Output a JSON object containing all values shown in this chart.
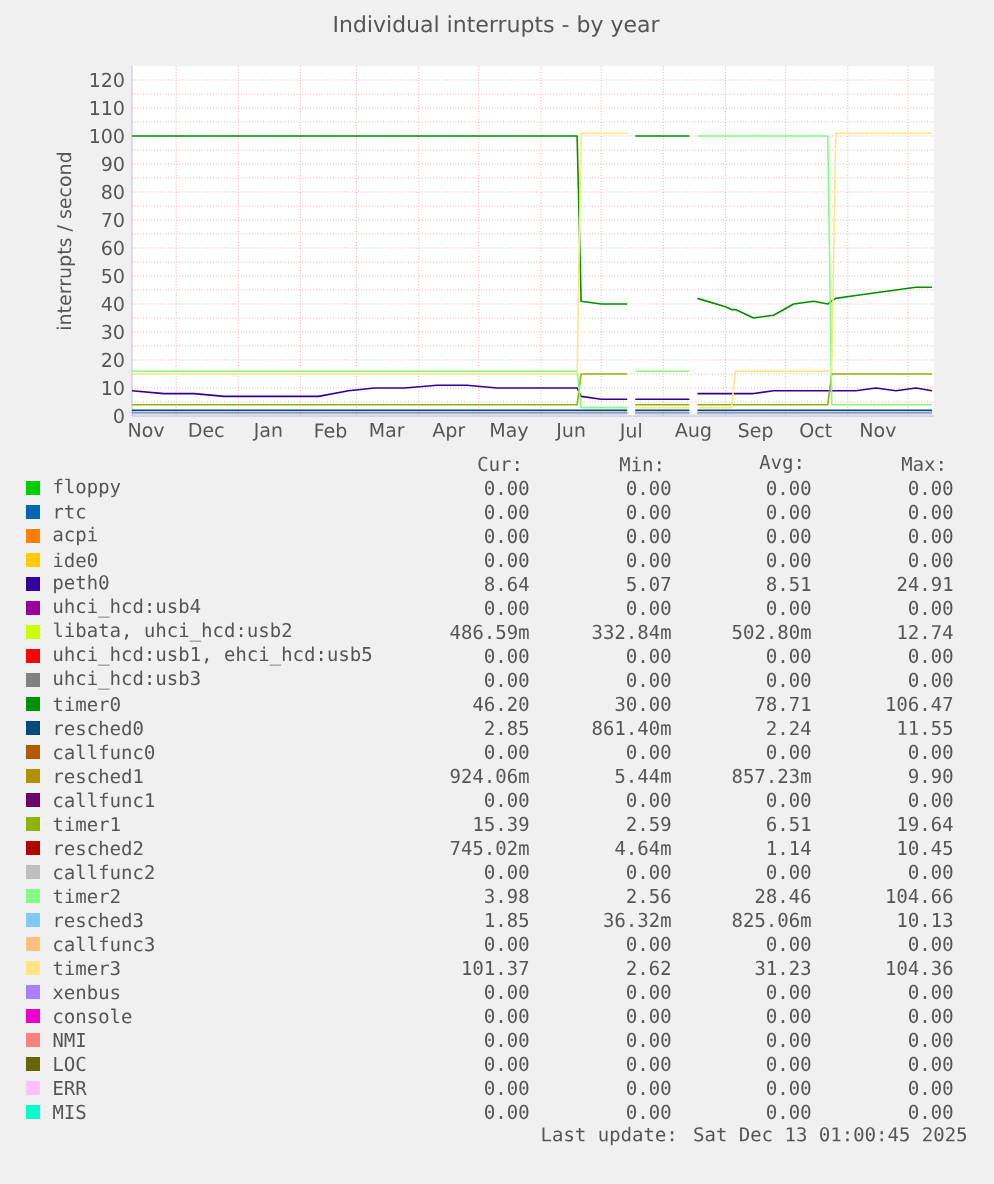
{
  "chart_data": {
    "type": "line",
    "title": "Individual interrupts - by year",
    "ylabel": "interrupts / second",
    "x": [
      "2024-11-09",
      "2024-11-25",
      "2024-12-10",
      "2024-12-25",
      "2025-01-10",
      "2025-01-25",
      "2025-02-10",
      "2025-02-25",
      "2025-03-10",
      "2025-03-25",
      "2025-04-10",
      "2025-04-25",
      "2025-05-10",
      "2025-05-25",
      "2025-06-10",
      "2025-06-19",
      "2025-06-21",
      "2025-07-01",
      "2025-07-14",
      "2025-07-16",
      "2025-07-18",
      "2025-08-01",
      "2025-08-14",
      "2025-08-16",
      "2025-08-18",
      "2025-09-01",
      "2025-09-04",
      "2025-09-06",
      "2025-09-15",
      "2025-09-25",
      "2025-10-05",
      "2025-10-15",
      "2025-10-22",
      "2025-10-24",
      "2025-10-26",
      "2025-11-05",
      "2025-11-15",
      "2025-11-25",
      "2025-12-05",
      "2025-12-13"
    ],
    "xlim": [
      "2024-11-09",
      "2025-12-14"
    ],
    "xticks": [
      {
        "value": "2024-12-01",
        "label": null
      },
      {
        "value": "2025-01-01",
        "label": null
      },
      {
        "value": "2025-02-01",
        "label": null
      },
      {
        "value": "2025-03-01",
        "label": null
      },
      {
        "value": "2025-04-01",
        "label": null
      },
      {
        "value": "2025-05-01",
        "label": null
      },
      {
        "value": "2025-06-01",
        "label": null
      },
      {
        "value": "2025-07-01",
        "label": null
      },
      {
        "value": "2025-08-01",
        "label": null
      },
      {
        "value": "2025-09-01",
        "label": null
      },
      {
        "value": "2025-10-01",
        "label": null
      },
      {
        "value": "2025-11-01",
        "label": null
      },
      {
        "value": "2025-12-01",
        "label": null
      },
      {
        "value": "2024-11-16",
        "label": "Nov"
      },
      {
        "value": "2024-12-16",
        "label": "Dec"
      },
      {
        "value": "2025-01-16",
        "label": "Jan"
      },
      {
        "value": "2025-02-16",
        "label": "Feb"
      },
      {
        "value": "2025-03-16",
        "label": "Mar"
      },
      {
        "value": "2025-04-16",
        "label": "Apr"
      },
      {
        "value": "2025-05-16",
        "label": "May"
      },
      {
        "value": "2025-06-16",
        "label": "Jun"
      },
      {
        "value": "2025-07-16",
        "label": "Jul"
      },
      {
        "value": "2025-08-16",
        "label": "Aug"
      },
      {
        "value": "2025-09-16",
        "label": "Sep"
      },
      {
        "value": "2025-10-16",
        "label": "Oct"
      },
      {
        "value": "2025-11-16",
        "label": "Nov"
      }
    ],
    "ylim": [
      0,
      125
    ],
    "yticks": [
      0,
      {
        "value": 5,
        "label": null
      },
      10,
      {
        "value": 15,
        "label": null
      },
      20,
      {
        "value": 25,
        "label": null
      },
      30,
      {
        "value": 35,
        "label": null
      },
      40,
      {
        "value": 45,
        "label": null
      },
      50,
      {
        "value": 55,
        "label": null
      },
      60,
      {
        "value": 65,
        "label": null
      },
      70,
      {
        "value": 75,
        "label": null
      },
      80,
      {
        "value": 85,
        "label": null
      },
      90,
      {
        "value": 95,
        "label": null
      },
      100,
      {
        "value": 105,
        "label": null
      },
      110,
      {
        "value": 115,
        "label": null
      },
      120
    ],
    "grid": true,
    "legend": "bottom",
    "series": [
      {
        "name": "floppy",
        "color": "#00cc00",
        "values": [
          null,
          null,
          null,
          null,
          null,
          null,
          null,
          null,
          null,
          null,
          null,
          null,
          null,
          null,
          null,
          null,
          null,
          null,
          null,
          null,
          null,
          null,
          null,
          null,
          null,
          null,
          null,
          null,
          null,
          null,
          null,
          null,
          null,
          null,
          null,
          null,
          null,
          null,
          null,
          null
        ]
      },
      {
        "name": "rtc",
        "color": "#0066b3",
        "values": [
          null,
          null,
          null,
          null,
          null,
          null,
          null,
          null,
          null,
          null,
          null,
          null,
          null,
          null,
          null,
          null,
          null,
          null,
          null,
          null,
          null,
          null,
          null,
          null,
          null,
          null,
          null,
          null,
          null,
          null,
          null,
          null,
          null,
          null,
          null,
          null,
          null,
          null,
          null,
          null
        ]
      },
      {
        "name": "acpi",
        "color": "#ff8000",
        "values": [
          null,
          null,
          null,
          null,
          null,
          null,
          null,
          null,
          null,
          null,
          null,
          null,
          null,
          null,
          null,
          null,
          null,
          null,
          null,
          null,
          null,
          null,
          null,
          null,
          null,
          null,
          null,
          null,
          null,
          null,
          null,
          null,
          null,
          null,
          null,
          null,
          null,
          null,
          null,
          null
        ]
      },
      {
        "name": "ide0",
        "color": "#ffcc00",
        "values": [
          null,
          null,
          null,
          null,
          null,
          null,
          null,
          null,
          null,
          null,
          null,
          null,
          null,
          null,
          null,
          null,
          null,
          null,
          null,
          null,
          null,
          null,
          null,
          null,
          null,
          null,
          null,
          null,
          null,
          null,
          null,
          null,
          null,
          null,
          null,
          null,
          null,
          null,
          null,
          null
        ]
      },
      {
        "name": "peth0",
        "color": "#330099",
        "values": [
          9,
          8,
          8,
          7,
          7,
          7,
          7,
          9,
          10,
          10,
          11,
          11,
          10,
          10,
          10,
          10,
          7,
          6,
          6,
          null,
          6,
          6,
          6,
          null,
          8,
          8,
          8,
          8,
          8,
          9,
          9,
          9,
          9,
          9,
          9,
          9,
          10,
          9,
          10,
          9
        ]
      },
      {
        "name": "uhci_hcd:usb4",
        "color": "#990099",
        "values": [
          null,
          null,
          null,
          null,
          null,
          null,
          null,
          null,
          null,
          null,
          null,
          null,
          null,
          null,
          null,
          null,
          null,
          null,
          null,
          null,
          null,
          null,
          null,
          null,
          null,
          null,
          null,
          null,
          null,
          null,
          null,
          null,
          null,
          null,
          null,
          null,
          null,
          null,
          null,
          null
        ]
      },
      {
        "name": "libata, uhci_hcd:usb2",
        "color": "#ccff00",
        "values": [
          null,
          null,
          null,
          null,
          null,
          null,
          null,
          null,
          null,
          null,
          null,
          null,
          null,
          null,
          null,
          null,
          null,
          null,
          null,
          null,
          null,
          null,
          null,
          null,
          null,
          null,
          null,
          null,
          null,
          null,
          null,
          null,
          null,
          null,
          null,
          null,
          null,
          null,
          null,
          null
        ]
      },
      {
        "name": "uhci_hcd:usb1, ehci_hcd:usb5",
        "color": "#ff0000",
        "values": [
          null,
          null,
          null,
          null,
          null,
          null,
          null,
          null,
          null,
          null,
          null,
          null,
          null,
          null,
          null,
          null,
          null,
          null,
          null,
          null,
          null,
          null,
          null,
          null,
          null,
          null,
          null,
          null,
          null,
          null,
          null,
          null,
          null,
          null,
          null,
          null,
          null,
          null,
          null,
          null
        ]
      },
      {
        "name": "uhci_hcd:usb3",
        "color": "#808080",
        "values": [
          null,
          null,
          null,
          null,
          null,
          null,
          null,
          null,
          null,
          null,
          null,
          null,
          null,
          null,
          null,
          null,
          null,
          null,
          null,
          null,
          null,
          null,
          null,
          null,
          null,
          null,
          null,
          null,
          null,
          null,
          null,
          null,
          null,
          null,
          null,
          null,
          null,
          null,
          null,
          null
        ]
      },
      {
        "name": "timer0",
        "color": "#008f00",
        "values": [
          100,
          100,
          100,
          100,
          100,
          100,
          100,
          100,
          100,
          100,
          100,
          100,
          100,
          100,
          100,
          100,
          41,
          40,
          40,
          null,
          100,
          100,
          100,
          null,
          42,
          39,
          38,
          38,
          35,
          36,
          40,
          41,
          40,
          41,
          42,
          43,
          44,
          45,
          46,
          46
        ]
      },
      {
        "name": "resched0",
        "color": "#00487d",
        "values": [
          2,
          2,
          2,
          2,
          2,
          2,
          2,
          2,
          2,
          2,
          2,
          2,
          2,
          2,
          2,
          2,
          2,
          2,
          2,
          null,
          2,
          2,
          2,
          null,
          2,
          2,
          2,
          2,
          2,
          2,
          2,
          2,
          2,
          2,
          2,
          2,
          2,
          2,
          2,
          2
        ]
      },
      {
        "name": "callfunc0",
        "color": "#b35a00",
        "values": [
          null,
          null,
          null,
          null,
          null,
          null,
          null,
          null,
          null,
          null,
          null,
          null,
          null,
          null,
          null,
          null,
          null,
          null,
          null,
          null,
          null,
          null,
          null,
          null,
          null,
          null,
          null,
          null,
          null,
          null,
          null,
          null,
          null,
          null,
          null,
          null,
          null,
          null,
          null,
          null
        ]
      },
      {
        "name": "resched1",
        "color": "#b38f00",
        "values": [
          null,
          null,
          null,
          null,
          null,
          null,
          null,
          null,
          null,
          null,
          null,
          null,
          null,
          null,
          null,
          null,
          null,
          null,
          null,
          null,
          null,
          null,
          null,
          null,
          null,
          null,
          null,
          null,
          null,
          null,
          null,
          null,
          null,
          null,
          null,
          null,
          null,
          null,
          null,
          null
        ]
      },
      {
        "name": "callfunc1",
        "color": "#6b006b",
        "values": [
          null,
          null,
          null,
          null,
          null,
          null,
          null,
          null,
          null,
          null,
          null,
          null,
          null,
          null,
          null,
          null,
          null,
          null,
          null,
          null,
          null,
          null,
          null,
          null,
          null,
          null,
          null,
          null,
          null,
          null,
          null,
          null,
          null,
          null,
          null,
          null,
          null,
          null,
          null,
          null
        ]
      },
      {
        "name": "timer1",
        "color": "#8fb300",
        "values": [
          4,
          4,
          4,
          4,
          4,
          4,
          4,
          4,
          4,
          4,
          4,
          4,
          4,
          4,
          4,
          4,
          15,
          15,
          15,
          null,
          4,
          4,
          4,
          null,
          4,
          4,
          4,
          4,
          4,
          4,
          4,
          4,
          4,
          15,
          15,
          15,
          15,
          15,
          15,
          15
        ]
      },
      {
        "name": "resched2",
        "color": "#b30000",
        "values": [
          1,
          1,
          1,
          1,
          1,
          1,
          1,
          1,
          1,
          1,
          1,
          1,
          1,
          1,
          1,
          1,
          1,
          1,
          1,
          null,
          1,
          1,
          1,
          null,
          1,
          1,
          1,
          1,
          1,
          1,
          1,
          1,
          1,
          1,
          1,
          1,
          1,
          1,
          1,
          1
        ]
      },
      {
        "name": "callfunc2",
        "color": "#bebebe",
        "values": [
          null,
          null,
          null,
          null,
          null,
          null,
          null,
          null,
          null,
          null,
          null,
          null,
          null,
          null,
          null,
          null,
          null,
          null,
          null,
          null,
          null,
          null,
          null,
          null,
          null,
          null,
          null,
          null,
          null,
          null,
          null,
          null,
          null,
          null,
          null,
          null,
          null,
          null,
          null,
          null
        ]
      },
      {
        "name": "timer2",
        "color": "#80ff80",
        "values": [
          16,
          16,
          16,
          16,
          16,
          16,
          16,
          16,
          16,
          16,
          16,
          16,
          16,
          16,
          16,
          16,
          3,
          3,
          3,
          null,
          16,
          16,
          16,
          null,
          100,
          100,
          100,
          100,
          100,
          100,
          100,
          100,
          100,
          4,
          4,
          4,
          4,
          4,
          4,
          4
        ]
      },
      {
        "name": "resched3",
        "color": "#80c9ff",
        "values": [
          0.8,
          0.8,
          0.8,
          0.8,
          0.8,
          0.8,
          0.8,
          0.8,
          0.8,
          0.8,
          0.8,
          0.8,
          0.8,
          0.8,
          0.8,
          0.8,
          0.8,
          0.8,
          0.8,
          null,
          0.8,
          0.8,
          0.8,
          null,
          0.8,
          0.8,
          0.8,
          0.8,
          0.8,
          0.8,
          0.8,
          0.8,
          0.8,
          0.8,
          0.8,
          0.8,
          0.8,
          0.8,
          0.8,
          0.8
        ]
      },
      {
        "name": "callfunc3",
        "color": "#ffc080",
        "values": [
          null,
          null,
          null,
          null,
          null,
          null,
          null,
          null,
          null,
          null,
          null,
          null,
          null,
          null,
          null,
          null,
          null,
          null,
          null,
          null,
          null,
          null,
          null,
          null,
          null,
          null,
          null,
          null,
          null,
          null,
          null,
          null,
          null,
          null,
          null,
          null,
          null,
          null,
          null,
          null
        ]
      },
      {
        "name": "timer3",
        "color": "#ffe680",
        "values": [
          15,
          15,
          15,
          15,
          15,
          15,
          15,
          15,
          15,
          15,
          15,
          15,
          15,
          15,
          15,
          15,
          101,
          101,
          101,
          null,
          3,
          3,
          3,
          null,
          3,
          3,
          3,
          16,
          16,
          16,
          16,
          16,
          16,
          16,
          101,
          101,
          101,
          101,
          101,
          101
        ]
      },
      {
        "name": "xenbus",
        "color": "#aa80ff",
        "values": [
          null,
          null,
          null,
          null,
          null,
          null,
          null,
          null,
          null,
          null,
          null,
          null,
          null,
          null,
          null,
          null,
          null,
          null,
          null,
          null,
          null,
          null,
          null,
          null,
          null,
          null,
          null,
          null,
          null,
          null,
          null,
          null,
          null,
          null,
          null,
          null,
          null,
          null,
          null,
          null
        ]
      },
      {
        "name": "console",
        "color": "#ee00cc",
        "values": [
          null,
          null,
          null,
          null,
          null,
          null,
          null,
          null,
          null,
          null,
          null,
          null,
          null,
          null,
          null,
          null,
          null,
          null,
          null,
          null,
          null,
          null,
          null,
          null,
          null,
          null,
          null,
          null,
          null,
          null,
          null,
          null,
          null,
          null,
          null,
          null,
          null,
          null,
          null,
          null
        ]
      },
      {
        "name": "NMI",
        "color": "#ff8080",
        "values": [
          null,
          null,
          null,
          null,
          null,
          null,
          null,
          null,
          null,
          null,
          null,
          null,
          null,
          null,
          null,
          null,
          null,
          null,
          null,
          null,
          null,
          null,
          null,
          null,
          null,
          null,
          null,
          null,
          null,
          null,
          null,
          null,
          null,
          null,
          null,
          null,
          null,
          null,
          null,
          null
        ]
      },
      {
        "name": "LOC",
        "color": "#666600",
        "values": [
          null,
          null,
          null,
          null,
          null,
          null,
          null,
          null,
          null,
          null,
          null,
          null,
          null,
          null,
          null,
          null,
          null,
          null,
          null,
          null,
          null,
          null,
          null,
          null,
          null,
          null,
          null,
          null,
          null,
          null,
          null,
          null,
          null,
          null,
          null,
          null,
          null,
          null,
          null,
          null
        ]
      },
      {
        "name": "ERR",
        "color": "#ffbfff",
        "values": [
          null,
          null,
          null,
          null,
          null,
          null,
          null,
          null,
          null,
          null,
          null,
          null,
          null,
          null,
          null,
          null,
          null,
          null,
          null,
          null,
          null,
          null,
          null,
          null,
          null,
          null,
          null,
          null,
          null,
          null,
          null,
          null,
          null,
          null,
          null,
          null,
          null,
          null,
          null,
          null
        ]
      },
      {
        "name": "MIS",
        "color": "#00ffcc",
        "values": [
          null,
          null,
          null,
          null,
          null,
          null,
          null,
          null,
          null,
          null,
          null,
          null,
          null,
          null,
          null,
          null,
          null,
          null,
          null,
          null,
          null,
          null,
          null,
          null,
          null,
          null,
          null,
          null,
          null,
          null,
          null,
          null,
          null,
          null,
          null,
          null,
          null,
          null,
          null,
          null
        ]
      }
    ],
    "annotations": [
      "Cur:",
      "Min:",
      "Avg:",
      "Max:",
      "0.00",
      "0.00",
      "0.00",
      "0.00",
      "0.00",
      "0.00",
      "0.00",
      "0.00",
      "0.00",
      "0.00",
      "0.00",
      "0.00",
      "0.00",
      "0.00",
      "0.00",
      "0.00",
      "8.64",
      "5.07",
      "8.51",
      "24.91",
      "0.00",
      "0.00",
      "0.00",
      "0.00",
      "486.59m",
      "332.84m",
      "502.80m",
      "12.74",
      "0.00",
      "0.00",
      "0.00",
      "0.00",
      "0.00",
      "0.00",
      "0.00",
      "0.00",
      "46.20",
      "30.00",
      "78.71",
      "106.47",
      "2.85",
      "861.40m",
      "2.24",
      "11.55",
      "0.00",
      "0.00",
      "0.00",
      "0.00",
      "924.06m",
      "5.44m",
      "857.23m",
      "9.90",
      "0.00",
      "0.00",
      "0.00",
      "0.00",
      "15.39",
      "2.59",
      "6.51",
      "19.64",
      "745.02m",
      "4.64m",
      "1.14",
      "10.45",
      "0.00",
      "0.00",
      "0.00",
      "0.00",
      "3.98",
      "2.56",
      "28.46",
      "104.66",
      "1.85",
      "36.32m",
      "825.06m",
      "10.13",
      "0.00",
      "0.00",
      "0.00",
      "0.00",
      "101.37",
      "2.62",
      "31.23",
      "104.36",
      "0.00",
      "0.00",
      "0.00",
      "0.00",
      "0.00",
      "0.00",
      "0.00",
      "0.00",
      "0.00",
      "0.00",
      "0.00",
      "0.00",
      "0.00",
      "0.00",
      "0.00",
      "0.00",
      "0.00",
      "0.00",
      "0.00",
      "0.00",
      "0.00",
      "0.00",
      "0.00",
      "0.00",
      "Last update:  Sat Dec 13 01:00:45 2025"
    ]
  }
}
